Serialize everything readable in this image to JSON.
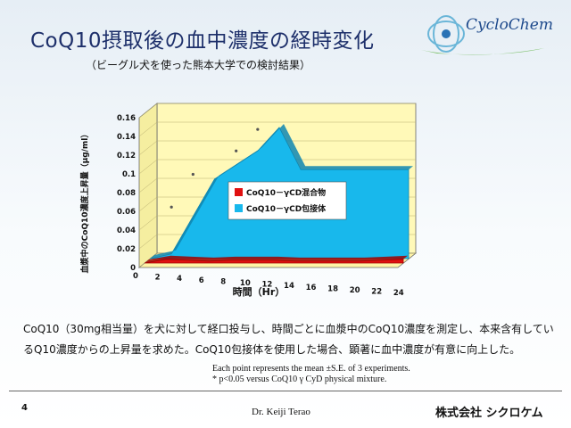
{
  "header": {
    "title": "CoQ10摂取後の血中濃度の経時変化",
    "subtitle": "（ビーグル犬を使った熊本大学での検討結果）",
    "logo_text": "CycloChem"
  },
  "chart_data": {
    "type": "area",
    "x": [
      0,
      2,
      4,
      6,
      8,
      10,
      12,
      14,
      16,
      18,
      20,
      22,
      24
    ],
    "xlabel": "時間（Hr）",
    "ylabel": "血漿中のCoQ10濃度上昇量（μg/ml）",
    "ylim": [
      0,
      0.16
    ],
    "yticks": [
      "0",
      "0.02",
      "0.04",
      "0.06",
      "0.08",
      "0.1",
      "0.12",
      "0.14",
      "0.16"
    ],
    "series": [
      {
        "name": "CoQ10－γCD混合物",
        "color": "#e01010",
        "values": [
          0,
          0.004,
          0.003,
          0.002,
          0.003,
          0.003,
          0.003,
          0.002,
          0.002,
          0.002,
          0.002,
          0.003,
          0.004
        ]
      },
      {
        "name": "CoQ10－γCD包接体",
        "color": "#18b8ec",
        "values": [
          0,
          0.005,
          0.045,
          0.085,
          0.1,
          0.115,
          0.14,
          0.095,
          0.095,
          0.095,
          0.095,
          0.095,
          0.095
        ]
      }
    ],
    "scatter_points": [
      {
        "x": 2,
        "y": 0.055
      },
      {
        "x": 4,
        "y": 0.09
      },
      {
        "x": 8,
        "y": 0.115
      },
      {
        "x": 10,
        "y": 0.138
      }
    ],
    "legend": "center-right"
  },
  "description": "CoQ10（30mg相当量）を犬に対して経口投与し、時間ごとに血漿中のCoQ10濃度を測定し、本来含有しているQ10濃度からの上昇量を求めた。CoQ10包接体を使用した場合、顕著に血中濃度が有意に向上した。",
  "notes": [
    "Each point represents the mean ±S.E. of 3 experiments.",
    "* p<0.05 versus CoQ10  γ CyD physical mixture."
  ],
  "footer": {
    "page_number": "4",
    "author": "Dr. Keiji Terao",
    "company": "株式会社 シクロケム"
  },
  "colors": {
    "title": "#1d2f6a",
    "back_wall": "#fff9b8",
    "floor": "#fff4a6",
    "red_series": "#e01010",
    "blue_series": "#18b8ec"
  }
}
